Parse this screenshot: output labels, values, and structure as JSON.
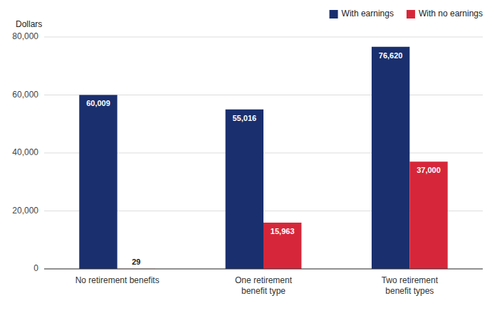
{
  "chart_data": {
    "type": "bar",
    "categories": [
      "No retirement benefits",
      "One retirement\nbenefit type",
      "Two retirement\nbenefit types"
    ],
    "series": [
      {
        "name": "With earnings",
        "color": "#1a2f6e",
        "values": [
          60009,
          55016,
          76620
        ],
        "value_labels": [
          "60,009",
          "55,016",
          "76,620"
        ]
      },
      {
        "name": "With no earnings",
        "color": "#d6273a",
        "values": [
          29,
          15963,
          37000
        ],
        "value_labels": [
          "29",
          "15,963",
          "37,000"
        ]
      }
    ],
    "y_label": "Dollars",
    "ylim": [
      0,
      80000
    ],
    "yticks": [
      0,
      {
        "value": 20000,
        "label": "20,000"
      },
      {
        "value": 40000,
        "label": "40,000"
      },
      {
        "value": 60000,
        "label": "60,000"
      },
      {
        "value": 80000,
        "label": "80,000"
      }
    ],
    "grid": true,
    "legend": "top-right",
    "data_labels": true
  }
}
